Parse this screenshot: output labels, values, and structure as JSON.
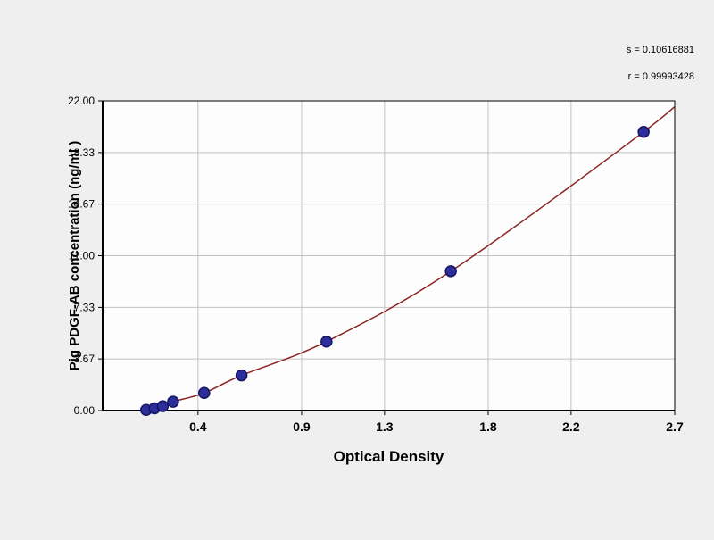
{
  "chart_data": {
    "type": "scatter",
    "title": "",
    "xlabel": "Optical Density",
    "ylabel": "Pig PDGF-AB concentration (ng/ml )",
    "xlim": [
      -0.06,
      2.7
    ],
    "ylim": [
      0,
      22
    ],
    "grid": true,
    "legend": "none",
    "x_ticks": {
      "values": [
        0.4,
        0.9,
        1.3,
        1.8,
        2.2,
        2.7
      ],
      "labels": [
        "0.4",
        "0.9",
        "1.3",
        "1.8",
        "2.2",
        "2.7"
      ]
    },
    "y_ticks": {
      "values": [
        0,
        3.67,
        7.33,
        11,
        14.67,
        18.33,
        22
      ],
      "labels": [
        "0.00",
        "3.67",
        "7.33",
        "11.00",
        "14.67",
        "18.33",
        "22.00"
      ]
    },
    "series": [
      {
        "name": "standard-curve-points",
        "points": [
          [
            0.15,
            0.05
          ],
          [
            0.19,
            0.16
          ],
          [
            0.23,
            0.31
          ],
          [
            0.28,
            0.63
          ],
          [
            0.43,
            1.25
          ],
          [
            0.61,
            2.5
          ],
          [
            1.02,
            4.9
          ],
          [
            1.62,
            9.9
          ],
          [
            2.55,
            19.8
          ]
        ]
      }
    ],
    "curve_end": [
      2.78,
      22.8
    ],
    "annotations": [
      "s = 0.10616881",
      "r = 0.99993428"
    ],
    "colors": {
      "background": "#efeff0",
      "plot_background": "#fdfdfd",
      "grid": "#c2c2c2",
      "axis": "#000000",
      "curve": "#8b2323",
      "point_fill": "#2d2d9b",
      "point_stroke": "#151563"
    }
  }
}
